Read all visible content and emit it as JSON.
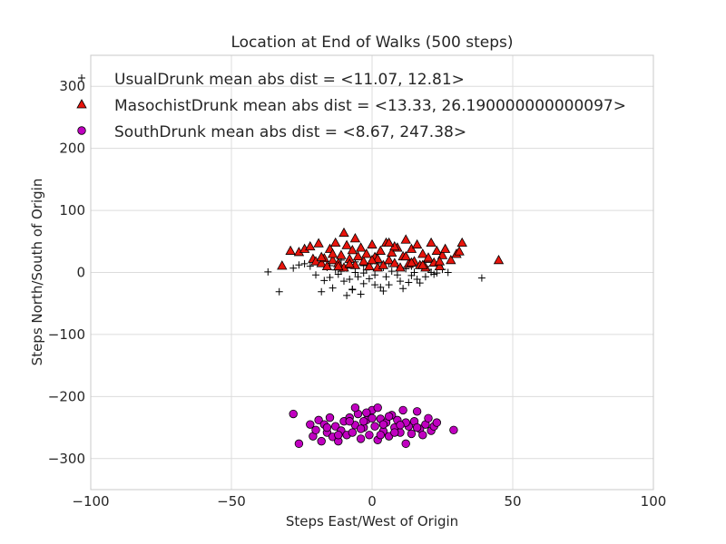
{
  "chart_data": {
    "type": "scatter",
    "title": "Location at End of Walks (500 steps)",
    "xlabel": "Steps East/West of Origin",
    "ylabel": "Steps North/South of Origin",
    "xlim": [
      -100,
      100
    ],
    "ylim": [
      -350,
      350
    ],
    "x_ticks": [
      -100,
      -50,
      0,
      50,
      100
    ],
    "y_ticks": [
      -300,
      -200,
      -100,
      0,
      100,
      200,
      300
    ],
    "x_tick_labels": [
      "−100",
      "−50",
      "0",
      "50",
      "100"
    ],
    "y_tick_labels": [
      "−300",
      "−200",
      "−100",
      "0",
      "100",
      "200",
      "300"
    ],
    "grid": true,
    "legend_position": "top-left",
    "series": [
      {
        "name": "UsualDrunk mean abs dist = <11.07, 12.81>",
        "marker": "plus",
        "color": "#000000",
        "x": [
          -37,
          -33,
          -28,
          -26,
          -24,
          -22,
          -20,
          -18,
          -17,
          -16,
          -15,
          -14,
          -13,
          -12,
          -11,
          -10,
          -9,
          -9,
          -8,
          -7,
          -6,
          -5,
          -4,
          -3,
          -3,
          -2,
          -1,
          0,
          1,
          2,
          3,
          4,
          5,
          6,
          7,
          8,
          9,
          10,
          11,
          12,
          13,
          14,
          15,
          16,
          17,
          18,
          19,
          20,
          21,
          22,
          23,
          25,
          27,
          39,
          -6,
          4,
          10,
          -15,
          -11,
          -3,
          6,
          14,
          1,
          -7
        ],
        "y": [
          1,
          -31,
          7,
          12,
          14,
          10,
          -4,
          -31,
          -13,
          8,
          -8,
          -25,
          4,
          -3,
          20,
          -14,
          -37,
          7,
          -11,
          -27,
          0,
          -7,
          -35,
          11,
          -18,
          4,
          -10,
          18,
          -4,
          14,
          -24,
          8,
          -7,
          -20,
          2,
          15,
          -4,
          -14,
          -26,
          6,
          -16,
          10,
          0,
          -11,
          -17,
          12,
          -7,
          5,
          0,
          -3,
          -1,
          5,
          0,
          -9,
          17,
          -30,
          8,
          11,
          2,
          -1,
          14,
          -5,
          -20,
          -28
        ]
      },
      {
        "name": "MasochistDrunk mean abs dist = <13.33, 26.190000000000097>",
        "marker": "triangle",
        "color": "#e8140c",
        "x": [
          -32,
          -29,
          -26,
          -24,
          -21,
          -20,
          -19,
          -18,
          -17,
          -16,
          -15,
          -14,
          -13,
          -12,
          -11,
          -10,
          -10,
          -9,
          -8,
          -7,
          -6,
          -5,
          -4,
          -3,
          -2,
          -1,
          0,
          1,
          2,
          3,
          4,
          5,
          6,
          7,
          8,
          9,
          10,
          11,
          12,
          13,
          14,
          15,
          16,
          17,
          18,
          19,
          20,
          21,
          22,
          23,
          24,
          25,
          26,
          28,
          30,
          31,
          32,
          45,
          -18,
          -12,
          -6,
          2,
          8,
          14,
          20,
          -22,
          -14,
          -8,
          0,
          6,
          12,
          18,
          24
        ],
        "y": [
          11,
          35,
          33,
          38,
          22,
          18,
          47,
          15,
          23,
          10,
          38,
          20,
          48,
          15,
          28,
          64,
          8,
          44,
          22,
          36,
          12,
          26,
          40,
          18,
          30,
          10,
          45,
          25,
          8,
          35,
          12,
          48,
          20,
          32,
          15,
          40,
          8,
          26,
          53,
          14,
          38,
          18,
          45,
          12,
          30,
          8,
          22,
          48,
          16,
          35,
          10,
          28,
          38,
          20,
          30,
          34,
          48,
          20,
          25,
          10,
          55,
          22,
          42,
          16,
          24,
          42,
          30,
          14,
          20,
          48,
          26,
          12,
          18
        ]
      },
      {
        "name": "SouthDrunk mean abs dist = <8.67, 247.38>",
        "marker": "circle",
        "color": "#c000c0",
        "x": [
          -28,
          -26,
          -22,
          -21,
          -20,
          -19,
          -18,
          -17,
          -16,
          -15,
          -14,
          -13,
          -12,
          -11,
          -10,
          -9,
          -8,
          -7,
          -6,
          -5,
          -4,
          -3,
          -2,
          -1,
          0,
          1,
          2,
          3,
          4,
          5,
          6,
          7,
          8,
          9,
          10,
          11,
          12,
          13,
          14,
          15,
          16,
          17,
          18,
          19,
          20,
          21,
          22,
          23,
          29,
          -16,
          -12,
          -8,
          -4,
          0,
          4,
          8,
          12,
          16,
          -6,
          -2,
          2,
          6,
          10,
          3,
          -3
        ],
        "y": [
          -228,
          -276,
          -245,
          -264,
          -254,
          -238,
          -272,
          -245,
          -258,
          -234,
          -265,
          -248,
          -272,
          -255,
          -240,
          -262,
          -234,
          -258,
          -246,
          -228,
          -268,
          -250,
          -238,
          -262,
          -222,
          -248,
          -270,
          -236,
          -256,
          -242,
          -264,
          -230,
          -250,
          -238,
          -258,
          -222,
          -276,
          -248,
          -260,
          -240,
          -224,
          -252,
          -262,
          -245,
          -235,
          -255,
          -248,
          -242,
          -254,
          -250,
          -262,
          -240,
          -252,
          -235,
          -245,
          -258,
          -242,
          -250,
          -218,
          -226,
          -218,
          -232,
          -246,
          -262,
          -240
        ]
      }
    ]
  }
}
